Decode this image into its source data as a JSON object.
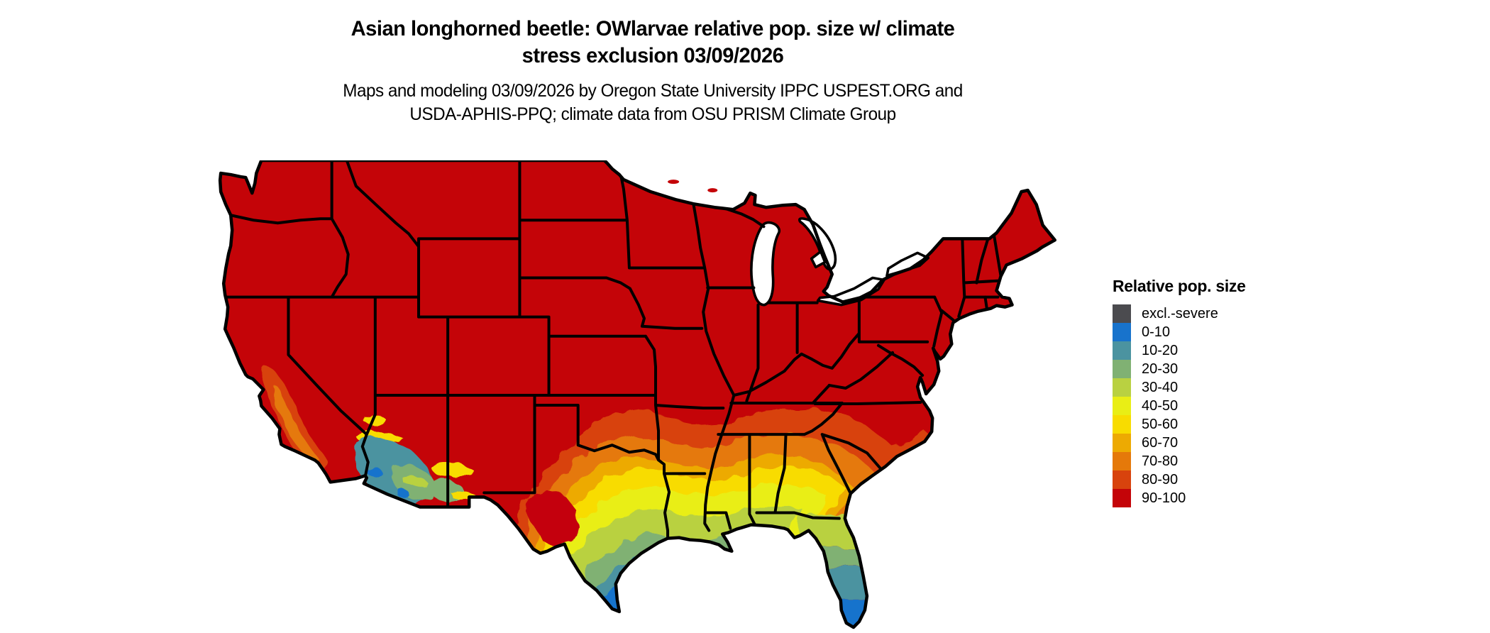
{
  "header": {
    "title_line1": "Asian longhorned beetle: OWlarvae relative pop. size w/ climate",
    "title_line2": "stress exclusion 03/09/2026",
    "subtitle_line1": "Maps and modeling 03/09/2026 by Oregon State University IPPC USPEST.ORG and",
    "subtitle_line2": "USDA-APHIS-PPQ; climate data from OSU PRISM Climate Group"
  },
  "legend": {
    "title": "Relative pop. size",
    "items": [
      {
        "label": "excl.-severe",
        "color": "#4b4b4f"
      },
      {
        "label": "0-10",
        "color": "#1873cc"
      },
      {
        "label": "10-20",
        "color": "#4b93a0"
      },
      {
        "label": "20-30",
        "color": "#80b173"
      },
      {
        "label": "30-40",
        "color": "#b9d141"
      },
      {
        "label": "40-50",
        "color": "#e9ee15"
      },
      {
        "label": "50-60",
        "color": "#f8dc00"
      },
      {
        "label": "60-70",
        "color": "#edaa02"
      },
      {
        "label": "70-80",
        "color": "#e5790a"
      },
      {
        "label": "80-90",
        "color": "#d8430d"
      },
      {
        "label": "90-100",
        "color": "#c40408"
      }
    ]
  },
  "map": {
    "type": "raster choropleth of relative population size classes",
    "region": "Continental United States with black state boundaries",
    "background_color": "#ffffff",
    "border_color": "#000000",
    "dominant_classes": {
      "north_and_interior_us": "90-100",
      "california_central_valley": "70-80 to 80-90",
      "southwest_deserts_se_california_sw_arizona": "0-10 to 40-50 mosaic",
      "oklahoma_arkansas_tennessee_south_carolina_band": "70-80 to 80-90",
      "central_texas_louisiana_mississippi_alabama_georgia_band": "40-50 to 60-70",
      "south_texas_rio_grande_valley": "0-10 to 20-30",
      "north_florida": "30-40",
      "central_florida": "10-20 to 20-30",
      "south_florida": "0-10"
    }
  }
}
